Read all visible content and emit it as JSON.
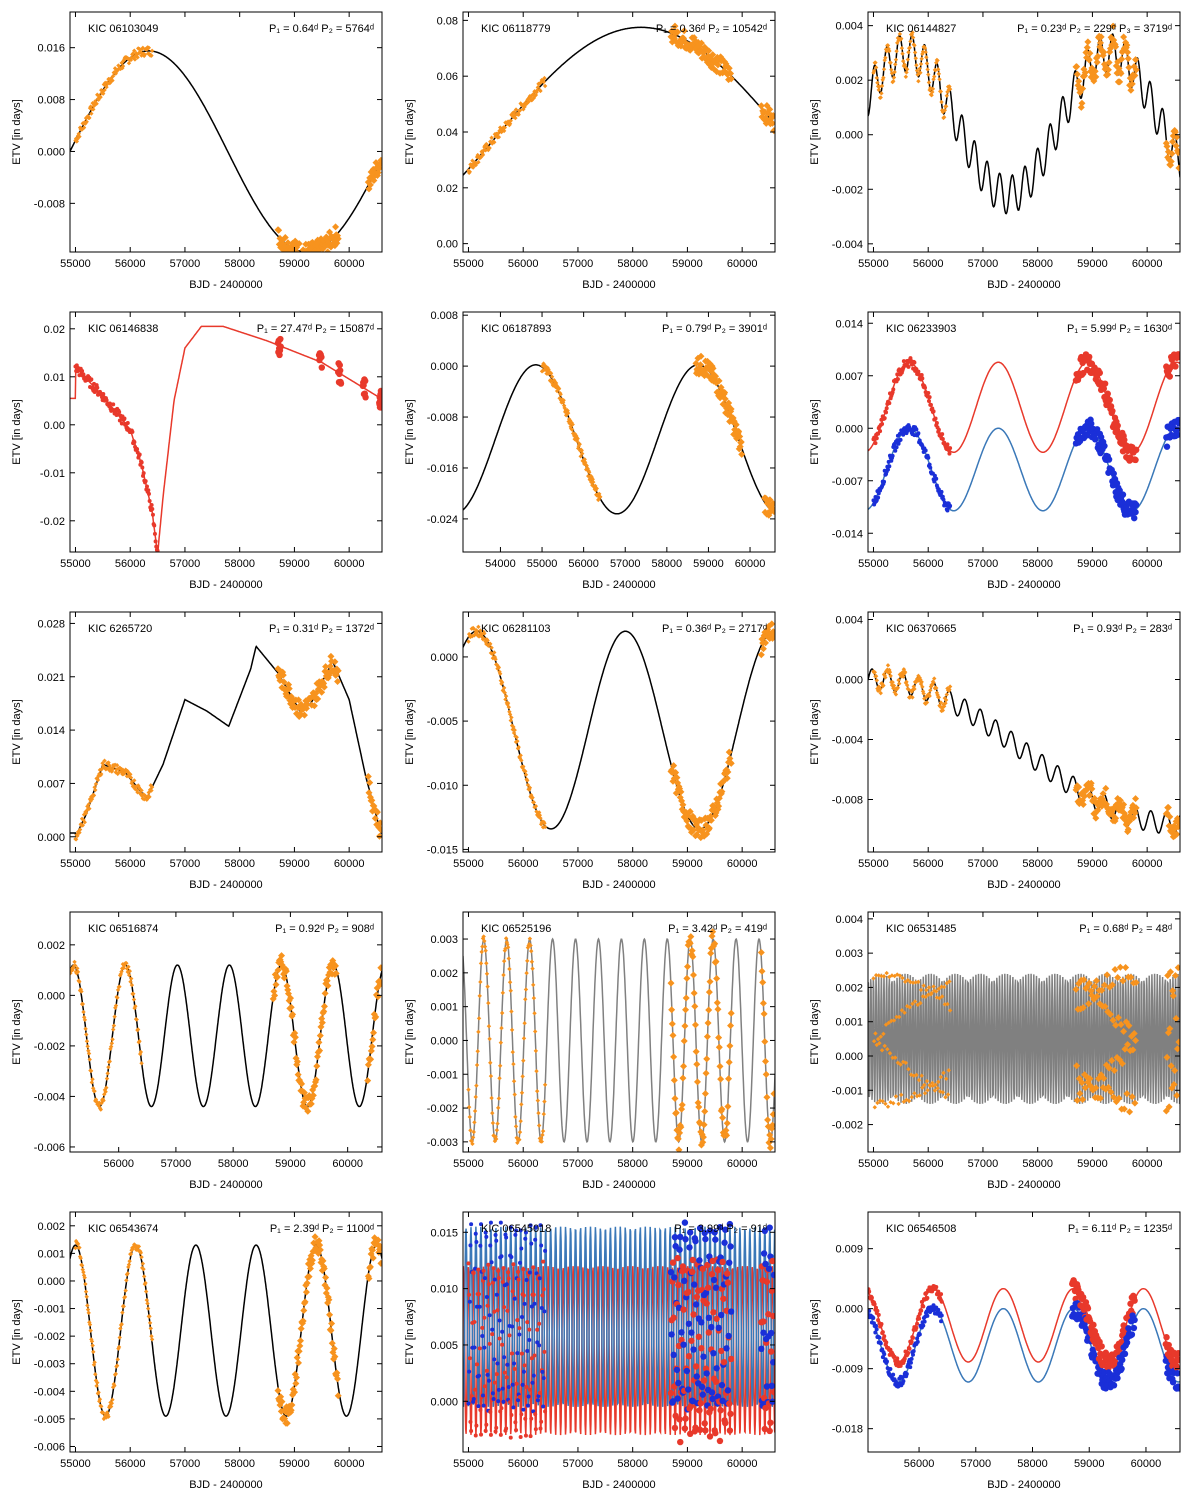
{
  "figure": {
    "panels": [
      {
        "kic": "KIC 06103049",
        "period_label": "P₁ = 0.64ᵈ P₂ = 5764ᵈ"
      },
      {
        "kic": "KIC 06118779",
        "period_label": "P₁ = 0.36ᵈ P₂ = 10542ᵈ"
      },
      {
        "kic": "KIC 06144827",
        "period_label": "P₁ = 0.23ᵈ P₂ = 229ᵈ P₃ = 3719ᵈ"
      },
      {
        "kic": "KIC 06146838",
        "period_label": "P₁ = 27.47ᵈ P₂ = 15087ᵈ"
      },
      {
        "kic": "KIC 06187893",
        "period_label": "P₁ = 0.79ᵈ P₂ = 3901ᵈ"
      },
      {
        "kic": "KIC 06233903",
        "period_label": "P₁ = 5.99ᵈ P₂ = 1630ᵈ"
      },
      {
        "kic": "KIC 6265720",
        "period_label": "P₁ = 0.31ᵈ P₂ = 1372ᵈ"
      },
      {
        "kic": "KIC 06281103",
        "period_label": "P₁ = 0.36ᵈ P₂ = 2717ᵈ"
      },
      {
        "kic": "KIC 06370665",
        "period_label": "P₁ = 0.93ᵈ P₂ = 283ᵈ"
      },
      {
        "kic": "KIC 06516874",
        "period_label": "P₁ = 0.92ᵈ P₂ = 908ᵈ"
      },
      {
        "kic": "KIC 06525196",
        "period_label": "P₁ = 3.42ᵈ P₂ = 419ᵈ"
      },
      {
        "kic": "KIC 06531485",
        "period_label": "P₁ = 0.68ᵈ P₂ = 48ᵈ"
      },
      {
        "kic": "KIC 06543674",
        "period_label": "P₁ = 2.39ᵈ P₂ = 1100ᵈ"
      },
      {
        "kic": "KIC 06545018",
        "period_label": "P₁ = 3.99ᵈ P₂ = 91ᵈ"
      },
      {
        "kic": "KIC 06546508",
        "period_label": "P₁ = 6.11ᵈ P₂ = 1235ᵈ"
      }
    ]
  },
  "chart_data": [
    {
      "type": "scatter",
      "kic": "KIC 06103049",
      "xlabel": "BJD - 2400000",
      "ylabel": "ETV [in days]",
      "xlim": [
        54900,
        60600
      ],
      "ylim": [
        -0.0155,
        0.0215
      ],
      "xticks": [
        "55000",
        "56000",
        "57000",
        "58000",
        "59000",
        "60000"
      ],
      "yticks": [
        "-0.008",
        "0.000",
        "0.008",
        "0.016"
      ],
      "model": {
        "type": "sine",
        "offset": 0.0,
        "amplitude": 0.0155,
        "period": 5764,
        "phase_x": 56340,
        "color": "#000000"
      },
      "data": {
        "color": "#f7931e",
        "marker": "diamond",
        "segments": [
          [
            55000,
            56400
          ],
          [
            58700,
            59800
          ],
          [
            60350,
            60580
          ]
        ]
      }
    },
    {
      "type": "scatter",
      "kic": "KIC 06118779",
      "xlabel": "BJD - 2400000",
      "ylabel": "ETV [in days]",
      "xlim": [
        54900,
        60600
      ],
      "ylim": [
        -0.003,
        0.083
      ],
      "xticks": [
        "55000",
        "56000",
        "57000",
        "58000",
        "59000",
        "60000"
      ],
      "yticks": [
        "0.00",
        "0.02",
        "0.04",
        "0.06",
        "0.08"
      ],
      "model": {
        "type": "sine",
        "offset": 0.0385,
        "amplitude": 0.039,
        "period": 10542,
        "phase_x": 58150,
        "color": "#000000"
      },
      "data": {
        "color": "#f7931e",
        "marker": "diamond",
        "segments": [
          [
            55000,
            56400
          ],
          [
            58700,
            59800
          ],
          [
            60350,
            60580
          ]
        ]
      }
    },
    {
      "type": "scatter",
      "kic": "KIC 06144827",
      "xlabel": "BJD - 2400000",
      "ylabel": "ETV [in days]",
      "xlim": [
        54900,
        60600
      ],
      "ylim": [
        -0.0043,
        0.0045
      ],
      "xticks": [
        "55000",
        "56000",
        "57000",
        "58000",
        "59000",
        "60000"
      ],
      "yticks": [
        "-0.004",
        "-0.002",
        "0.000",
        "0.002",
        "0.004"
      ],
      "model": {
        "type": "sine2",
        "offset": 0.0004,
        "amplitude": 0.0026,
        "period": 3719,
        "phase_x": 55600,
        "amp2": 0.0007,
        "period2": 229,
        "color": "#000000"
      },
      "data": {
        "color": "#f7931e",
        "marker": "diamond",
        "segments": [
          [
            55000,
            56400
          ],
          [
            58700,
            59800
          ],
          [
            60350,
            60580
          ]
        ]
      }
    },
    {
      "type": "scatter",
      "kic": "KIC 06146838",
      "xlabel": "BJD - 2400000",
      "ylabel": "ETV [in days]",
      "xlim": [
        54900,
        60600
      ],
      "ylim": [
        -0.0265,
        0.0235
      ],
      "xticks": [
        "55000",
        "56000",
        "57000",
        "58000",
        "59000",
        "60000"
      ],
      "yticks": [
        "-0.02",
        "-0.01",
        "0.00",
        "0.01",
        "0.02"
      ],
      "model": {
        "type": "ecc",
        "color": "#e8392b",
        "points": [
          [
            55000,
            0.012
          ],
          [
            55500,
            0.006
          ],
          [
            56000,
            -0.001
          ],
          [
            56200,
            -0.008
          ],
          [
            56400,
            -0.018
          ],
          [
            56500,
            -0.027
          ],
          [
            56600,
            -0.015
          ],
          [
            56800,
            0.005
          ],
          [
            57000,
            0.016
          ],
          [
            57300,
            0.0205
          ],
          [
            57700,
            0.0205
          ],
          [
            58500,
            0.0175
          ],
          [
            59500,
            0.013
          ],
          [
            60580,
            0.0055
          ]
        ]
      },
      "data": {
        "color": "#e8392b",
        "marker": "circle",
        "segments": [
          [
            55000,
            56500
          ],
          [
            58700,
            58750
          ],
          [
            59450,
            59500
          ],
          [
            59800,
            59850
          ],
          [
            60250,
            60300
          ],
          [
            60550,
            60580
          ]
        ]
      }
    },
    {
      "type": "scatter",
      "kic": "KIC 06187893",
      "xlabel": "BJD - 2400000",
      "ylabel": "ETV [in days]",
      "xlim": [
        53100,
        60600
      ],
      "ylim": [
        -0.0292,
        0.0085
      ],
      "xticks": [
        "54000",
        "55000",
        "56000",
        "57000",
        "58000",
        "59000",
        "60000"
      ],
      "yticks": [
        "-0.024",
        "-0.016",
        "-0.008",
        "0.000",
        "0.008"
      ],
      "model": {
        "type": "sine",
        "offset": -0.0115,
        "amplitude": 0.0117,
        "period": 3901,
        "phase_x": 54850,
        "color": "#000000"
      },
      "data": {
        "color": "#f7931e",
        "marker": "diamond",
        "segments": [
          [
            55000,
            56400
          ],
          [
            58700,
            59800
          ],
          [
            60350,
            60580
          ]
        ]
      }
    },
    {
      "type": "scatter",
      "kic": "KIC 06233903",
      "xlabel": "BJD - 2400000",
      "ylabel": "ETV [in days]",
      "xlim": [
        54900,
        60600
      ],
      "ylim": [
        -0.0165,
        0.0155
      ],
      "xticks": [
        "55000",
        "56000",
        "57000",
        "58000",
        "59000",
        "60000"
      ],
      "yticks": [
        "-0.014",
        "-0.007",
        "0.000",
        "0.007",
        "0.014"
      ],
      "model": {
        "type": "two_sine",
        "color1": "#e8392b",
        "color2": "#3a78b8",
        "curves": [
          {
            "offset": 0.0028,
            "amplitude": 0.006,
            "period": 1630,
            "phase_x": 55650
          },
          {
            "offset": -0.0055,
            "amplitude": 0.0055,
            "period": 1630,
            "phase_x": 55650
          }
        ]
      },
      "data": {
        "color": "#e8392b",
        "color2": "#1a2fd8",
        "marker": "circle",
        "segments": [
          [
            55000,
            56400
          ],
          [
            58700,
            59800
          ],
          [
            60350,
            60580
          ]
        ]
      }
    },
    {
      "type": "scatter",
      "kic": "KIC 6265720",
      "xlabel": "BJD - 2400000",
      "ylabel": "ETV [in days]",
      "xlim": [
        54900,
        60600
      ],
      "ylim": [
        -0.002,
        0.0295
      ],
      "xticks": [
        "55000",
        "56000",
        "57000",
        "58000",
        "59000",
        "60000"
      ],
      "yticks": [
        "0.000",
        "0.007",
        "0.014",
        "0.021",
        "0.028"
      ],
      "model": {
        "type": "tri",
        "color": "#000000",
        "points": [
          [
            55000,
            0.0
          ],
          [
            55200,
            0.003
          ],
          [
            55500,
            0.0095
          ],
          [
            55900,
            0.0085
          ],
          [
            56300,
            0.005
          ],
          [
            56600,
            0.0095
          ],
          [
            57000,
            0.018
          ],
          [
            57400,
            0.0165
          ],
          [
            57800,
            0.0145
          ],
          [
            58200,
            0.022
          ],
          [
            58300,
            0.025
          ],
          [
            58700,
            0.0215
          ],
          [
            59100,
            0.0165
          ],
          [
            59300,
            0.0175
          ],
          [
            59700,
            0.023
          ],
          [
            60000,
            0.018
          ],
          [
            60300,
            0.008
          ],
          [
            60580,
            0.0005
          ]
        ]
      },
      "data": {
        "color": "#f7931e",
        "marker": "diamond",
        "segments": [
          [
            55000,
            56400
          ],
          [
            58700,
            59800
          ],
          [
            60350,
            60580
          ]
        ]
      }
    },
    {
      "type": "scatter",
      "kic": "KIC 06281103",
      "xlabel": "BJD - 2400000",
      "ylabel": "ETV [in days]",
      "xlim": [
        54900,
        60600
      ],
      "ylim": [
        -0.0152,
        0.0035
      ],
      "xticks": [
        "55000",
        "56000",
        "57000",
        "58000",
        "59000",
        "60000"
      ],
      "yticks": [
        "-0.015",
        "-0.010",
        "-0.005",
        "0.000"
      ],
      "model": {
        "type": "sine",
        "offset": -0.0057,
        "amplitude": 0.0077,
        "period": 2717,
        "phase_x": 55150,
        "color": "#000000"
      },
      "data": {
        "color": "#f7931e",
        "marker": "diamond",
        "segments": [
          [
            55000,
            56400
          ],
          [
            58700,
            59800
          ],
          [
            60350,
            60580
          ]
        ]
      }
    },
    {
      "type": "scatter",
      "kic": "KIC 06370665",
      "xlabel": "BJD - 2400000",
      "ylabel": "ETV [in days]",
      "xlim": [
        54900,
        60600
      ],
      "ylim": [
        -0.0115,
        0.0045
      ],
      "xticks": [
        "55000",
        "56000",
        "57000",
        "58000",
        "59000",
        "60000"
      ],
      "yticks": [
        "-0.008",
        "-0.004",
        "0.000",
        "0.004"
      ],
      "model": {
        "type": "sine2",
        "offset": -0.0048,
        "amplitude": 0.0048,
        "period": 11000,
        "phase_x": 55000,
        "amp2": 0.0007,
        "period2": 283,
        "color": "#000000"
      },
      "data": {
        "color": "#f7931e",
        "marker": "diamond",
        "segments": [
          [
            55000,
            56400
          ],
          [
            58700,
            59800
          ],
          [
            60350,
            60580
          ]
        ]
      }
    },
    {
      "type": "scatter",
      "kic": "KIC 06516874",
      "xlabel": "BJD - 2400000",
      "ylabel": "ETV [in days]",
      "xlim": [
        55150,
        60600
      ],
      "ylim": [
        -0.0062,
        0.0033
      ],
      "xticks": [
        "56000",
        "57000",
        "58000",
        "59000",
        "60000"
      ],
      "yticks": [
        "-0.006",
        "-0.004",
        "-0.002",
        "0.000",
        "0.002"
      ],
      "model": {
        "type": "sine",
        "offset": -0.0016,
        "amplitude": 0.0028,
        "period": 908,
        "phase_x": 55210,
        "color": "#000000"
      },
      "data": {
        "color": "#f7931e",
        "marker": "diamond",
        "segments": [
          [
            55000,
            56400
          ],
          [
            58700,
            59800
          ],
          [
            60350,
            60580
          ]
        ]
      }
    },
    {
      "type": "scatter",
      "kic": "KIC 06525196",
      "xlabel": "BJD - 2400000",
      "ylabel": "ETV [in days]",
      "xlim": [
        54900,
        60600
      ],
      "ylim": [
        -0.0033,
        0.0038
      ],
      "xticks": [
        "55000",
        "56000",
        "57000",
        "58000",
        "59000",
        "60000"
      ],
      "yticks": [
        "-0.003",
        "-0.002",
        "-0.001",
        "0.000",
        "0.001",
        "0.002",
        "0.003"
      ],
      "model": {
        "type": "sine",
        "offset": 0.0,
        "amplitude": 0.003,
        "period": 419,
        "phase_x": 55280,
        "color": "#808080"
      },
      "data": {
        "color": "#f7931e",
        "marker": "diamond",
        "segments": [
          [
            55000,
            56400
          ],
          [
            58700,
            59800
          ],
          [
            60350,
            60580
          ]
        ]
      }
    },
    {
      "type": "scatter",
      "kic": "KIC 06531485",
      "xlabel": "BJD - 2400000",
      "ylabel": "ETV [in days]",
      "xlim": [
        54900,
        60600
      ],
      "ylim": [
        -0.0028,
        0.0042
      ],
      "xticks": [
        "55000",
        "56000",
        "57000",
        "58000",
        "59000",
        "60000"
      ],
      "yticks": [
        "-0.002",
        "-0.001",
        "0.000",
        "0.001",
        "0.002",
        "0.003",
        "0.004"
      ],
      "model": {
        "type": "sine",
        "offset": 0.0005,
        "amplitude": 0.0019,
        "period": 48,
        "phase_x": 55000,
        "color": "#808080"
      },
      "data": {
        "color": "#f7931e",
        "marker": "diamond",
        "segments": [
          [
            55000,
            56400
          ],
          [
            58700,
            59800
          ],
          [
            60350,
            60580
          ]
        ]
      }
    },
    {
      "type": "scatter",
      "kic": "KIC 06543674",
      "xlabel": "BJD - 2400000",
      "ylabel": "ETV [in days]",
      "xlim": [
        54900,
        60600
      ],
      "ylim": [
        -0.0062,
        0.0025
      ],
      "xticks": [
        "55000",
        "56000",
        "57000",
        "58000",
        "59000",
        "60000"
      ],
      "yticks": [
        "-0.006",
        "-0.005",
        "-0.004",
        "-0.003",
        "-0.002",
        "-0.001",
        "0.000",
        "0.001",
        "0.002"
      ],
      "model": {
        "type": "sine",
        "offset": -0.0018,
        "amplitude": 0.0031,
        "period": 1100,
        "phase_x": 55000,
        "color": "#000000"
      },
      "data": {
        "color": "#f7931e",
        "marker": "diamond",
        "segments": [
          [
            55000,
            56400
          ],
          [
            58700,
            59800
          ],
          [
            60350,
            60580
          ]
        ]
      }
    },
    {
      "type": "scatter",
      "kic": "KIC 06545018",
      "xlabel": "BJD - 2400000",
      "ylabel": "ETV [in days]",
      "xlim": [
        54900,
        60600
      ],
      "ylim": [
        -0.0045,
        0.0168
      ],
      "xticks": [
        "55000",
        "56000",
        "57000",
        "58000",
        "59000",
        "60000"
      ],
      "yticks": [
        "0.000",
        "0.005",
        "0.010",
        "0.015"
      ],
      "model": {
        "type": "two_sine",
        "color1": "#e8392b",
        "color2": "#3a78b8",
        "curves": [
          {
            "offset": 0.0045,
            "amplitude": 0.0075,
            "period": 91,
            "phase_x": 55000
          },
          {
            "offset": 0.0075,
            "amplitude": 0.008,
            "period": 91,
            "phase_x": 55045
          }
        ]
      },
      "data": {
        "color": "#e8392b",
        "color2": "#1a2fd8",
        "marker": "circle",
        "segments": [
          [
            55000,
            56400
          ],
          [
            58700,
            59800
          ],
          [
            60350,
            60580
          ]
        ]
      }
    },
    {
      "type": "scatter",
      "kic": "KIC 06546508",
      "xlabel": "BJD - 2400000",
      "ylabel": "ETV [in days]",
      "xlim": [
        55100,
        60600
      ],
      "ylim": [
        -0.0215,
        0.0145
      ],
      "xticks": [
        "56000",
        "57000",
        "58000",
        "59000",
        "60000"
      ],
      "yticks": [
        "-0.018",
        "-0.009",
        "0.000",
        "0.009"
      ],
      "model": {
        "type": "two_sine",
        "color1": "#e8392b",
        "color2": "#3a78b8",
        "curves": [
          {
            "offset": -0.0025,
            "amplitude": 0.0055,
            "period": 1235,
            "phase_x": 56250
          },
          {
            "offset": -0.0055,
            "amplitude": 0.0055,
            "period": 1235,
            "phase_x": 56250
          }
        ]
      },
      "data": {
        "color": "#e8392b",
        "color2": "#1a2fd8",
        "marker": "circle",
        "segments": [
          [
            55000,
            56400
          ],
          [
            58700,
            59800
          ],
          [
            60350,
            60580
          ]
        ]
      }
    }
  ]
}
